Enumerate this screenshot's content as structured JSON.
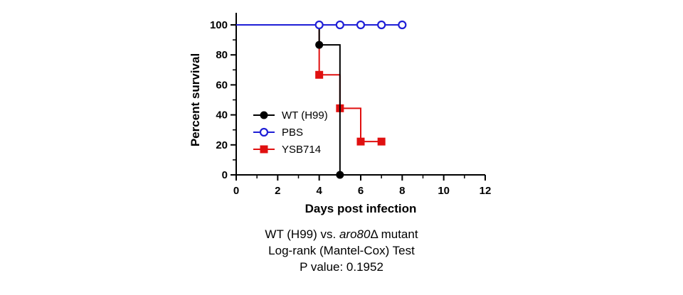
{
  "chart_data": {
    "type": "line",
    "subtype": "kaplan-meier-step",
    "xlabel": "Days post infection",
    "ylabel": "Percent survival",
    "xlim": [
      0,
      12
    ],
    "ylim": [
      0,
      100
    ],
    "x_ticks": [
      0,
      2,
      4,
      6,
      8,
      10,
      12
    ],
    "y_ticks": [
      0,
      20,
      40,
      60,
      80,
      100
    ],
    "grid": false,
    "legend_position": "center-left",
    "series": [
      {
        "name": "WT (H99)",
        "color": "#000000",
        "marker": "filled-circle",
        "x": [
          0,
          4,
          5
        ],
        "y": [
          100,
          86.7,
          0
        ]
      },
      {
        "name": "PBS",
        "color": "#1f1fd6",
        "marker": "open-circle",
        "x": [
          0,
          4,
          5,
          6,
          7,
          8
        ],
        "y": [
          100,
          100,
          100,
          100,
          100,
          100
        ]
      },
      {
        "name": "YSB714",
        "color": "#e01010",
        "marker": "filled-square",
        "x": [
          0,
          4,
          5,
          6,
          7
        ],
        "y": [
          100,
          66.7,
          44.4,
          22.2,
          22.2
        ]
      }
    ]
  },
  "caption": {
    "line1_prefix": "WT (H99) vs. ",
    "line1_italic": "aro80",
    "line1_suffix": "Δ mutant",
    "line2": "Log-rank (Mantel-Cox) Test",
    "line3": "P value: 0.1952"
  }
}
